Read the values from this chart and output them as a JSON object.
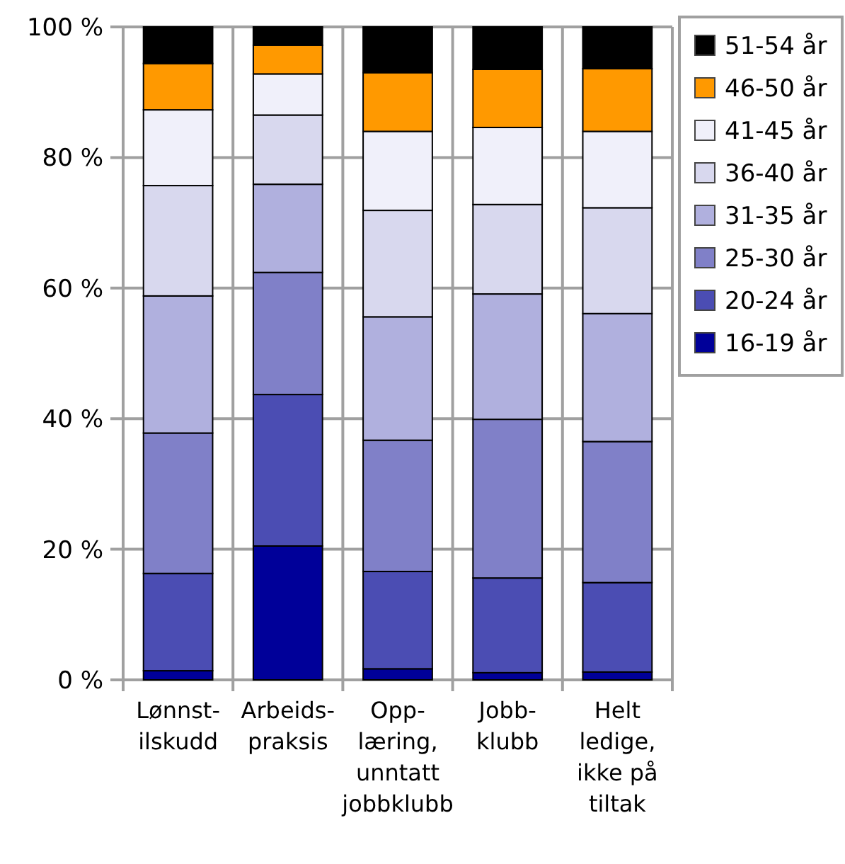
{
  "chart_data": {
    "type": "bar",
    "stacked": true,
    "categories": [
      "Lønnst-\nilskudd",
      "Arbeids-\npraksis",
      "Opp-\nlæring,\nunntatt\njobbklubb",
      "Jobb-\nklubb",
      "Helt\nledige,\nikke på\ntiltak"
    ],
    "series": [
      {
        "name": "16-19 år",
        "color": "#000099",
        "values": [
          1.4,
          20.5,
          1.7,
          1.1,
          1.2
        ]
      },
      {
        "name": "20-24 år",
        "color": "#4b4db3",
        "values": [
          14.9,
          23.2,
          14.9,
          14.5,
          13.7
        ]
      },
      {
        "name": "25-30 år",
        "color": "#8080c8",
        "values": [
          21.5,
          18.7,
          20.1,
          24.3,
          21.6
        ]
      },
      {
        "name": "31-35 år",
        "color": "#b0b0de",
        "values": [
          21.0,
          13.5,
          18.9,
          19.2,
          19.6
        ]
      },
      {
        "name": "36-40 år",
        "color": "#d8d8ee",
        "values": [
          16.9,
          10.6,
          16.3,
          13.7,
          16.2
        ]
      },
      {
        "name": "41-45 år",
        "color": "#f0f0fa",
        "values": [
          11.6,
          6.3,
          12.1,
          11.8,
          11.7
        ]
      },
      {
        "name": "46-50 år",
        "color": "#ff9900",
        "values": [
          7.1,
          4.4,
          9.0,
          8.9,
          9.6
        ]
      },
      {
        "name": "51-54 år",
        "color": "#000000",
        "values": [
          5.6,
          2.8,
          7.0,
          6.5,
          6.4
        ]
      }
    ],
    "ylim": [
      0,
      100
    ],
    "yticks": [
      {
        "value": 0,
        "label": "0 %"
      },
      {
        "value": 20,
        "label": "20 %"
      },
      {
        "value": 40,
        "label": "40 %"
      },
      {
        "value": 60,
        "label": "60 %"
      },
      {
        "value": 80,
        "label": "80 %"
      },
      {
        "value": 100,
        "label": "100 %"
      }
    ],
    "grid": true,
    "legend": "top right"
  }
}
